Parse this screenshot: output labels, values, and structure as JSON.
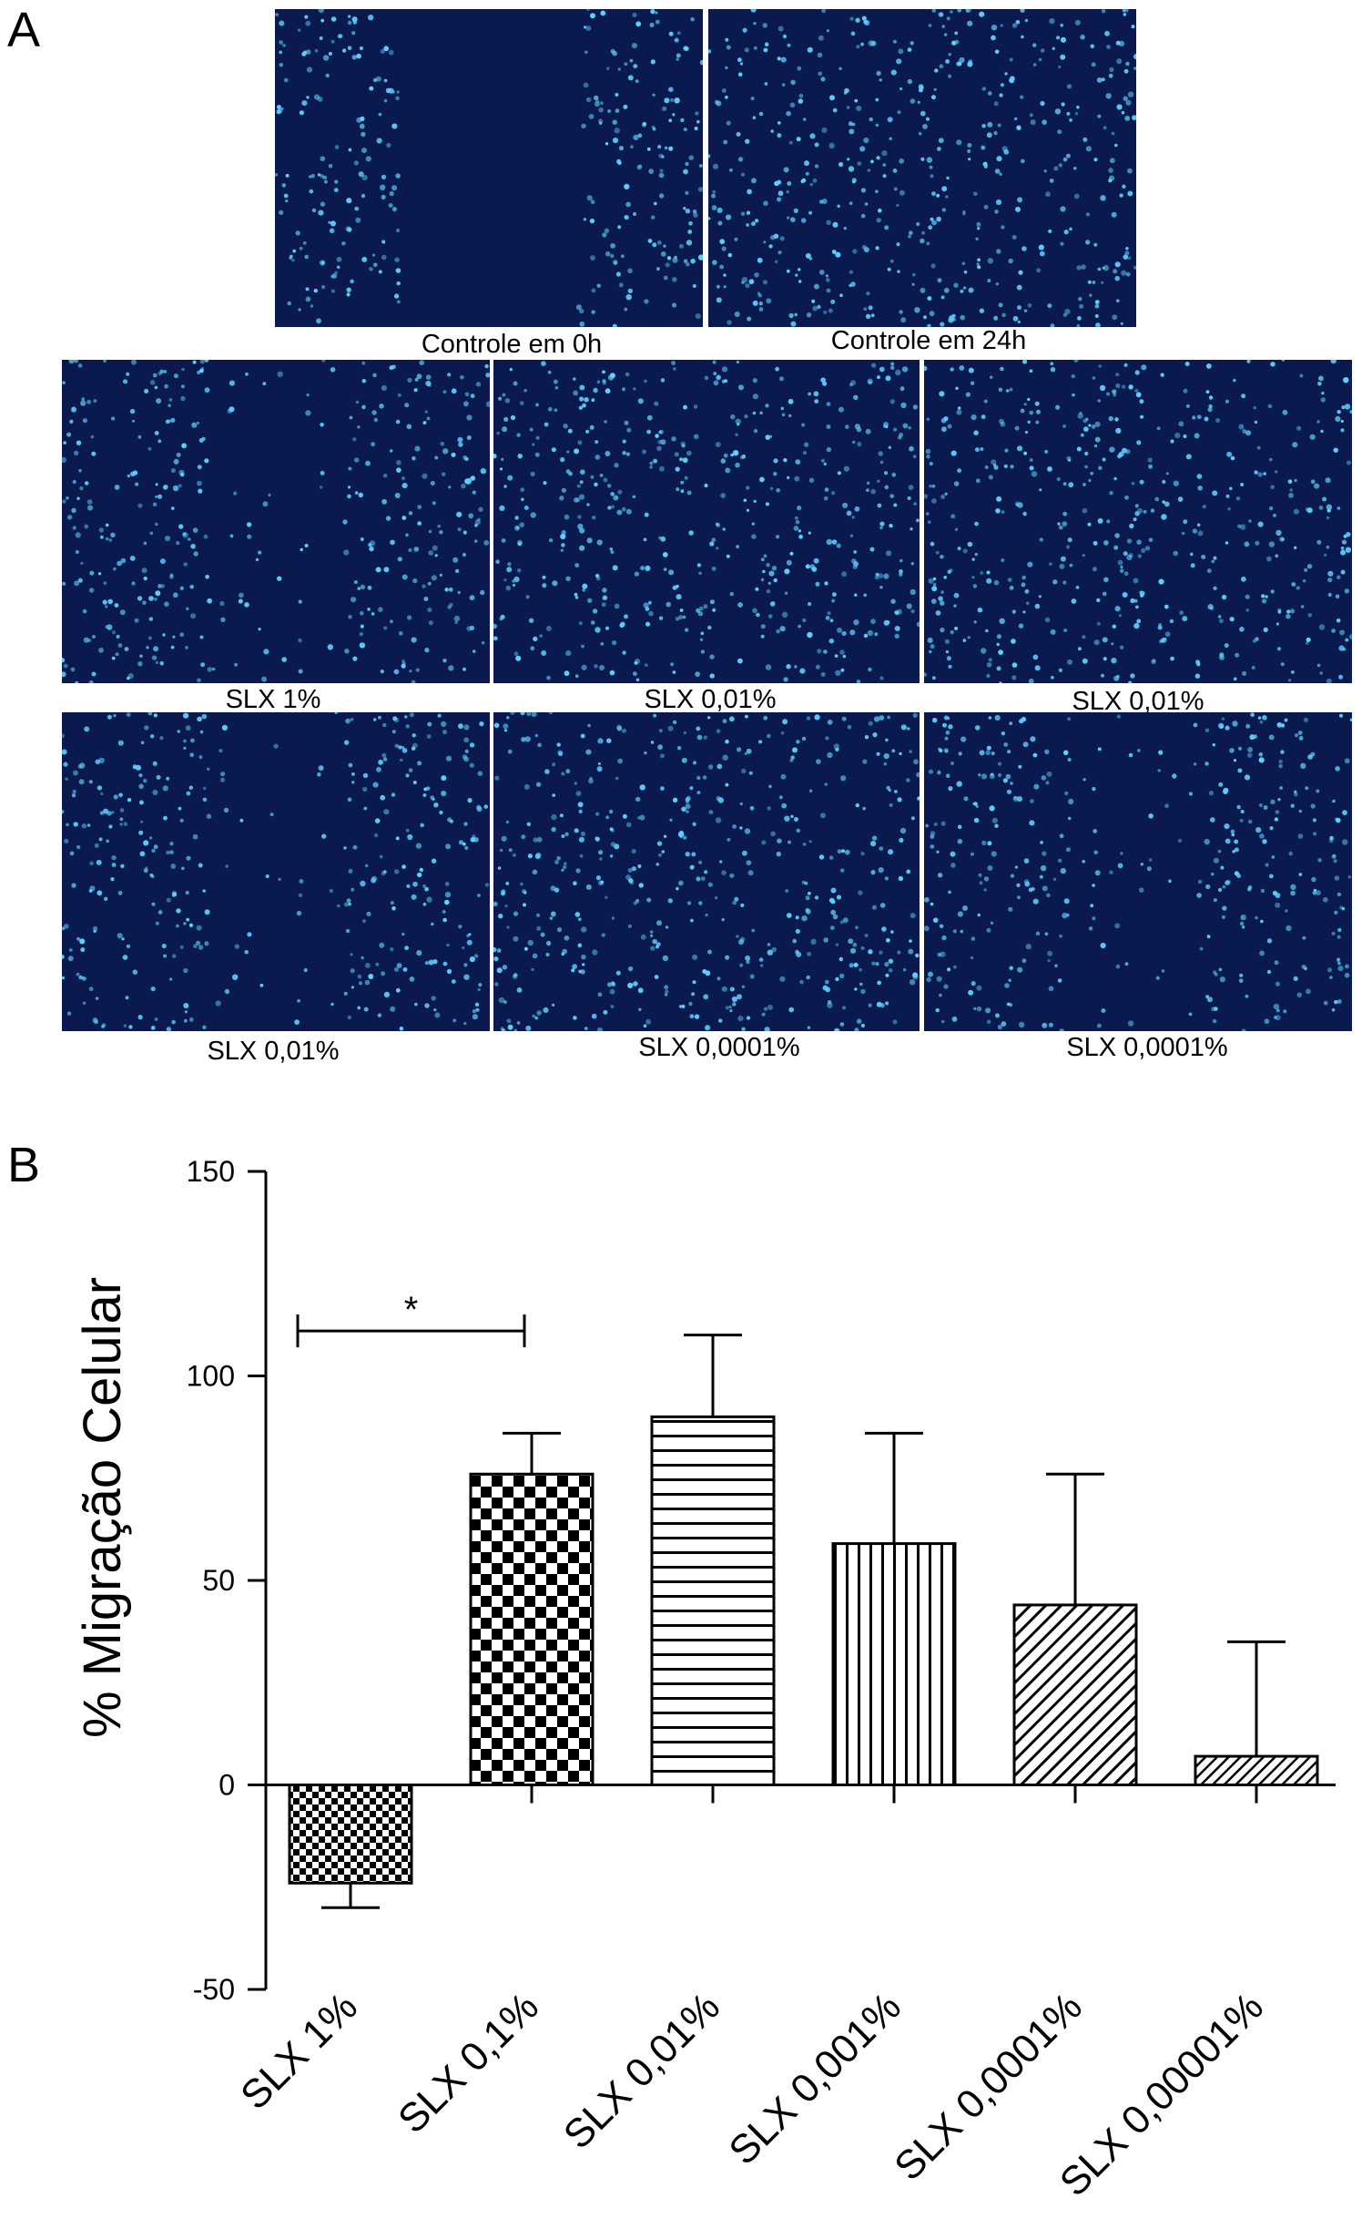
{
  "panel_a": {
    "letter": "A",
    "images": [
      {
        "caption": "Controle em 0h",
        "scratch": "open"
      },
      {
        "caption": "Controle em 24h",
        "scratch": "closed"
      },
      {
        "caption": "SLX 1%",
        "scratch": "partial"
      },
      {
        "caption": "SLX 0,01%",
        "scratch": "closed"
      },
      {
        "caption": "SLX 0,01%",
        "scratch": "closed"
      },
      {
        "caption": "SLX 0,01%",
        "scratch": "partial"
      },
      {
        "caption": "SLX 0,0001%",
        "scratch": "closed"
      },
      {
        "caption": "SLX 0,0001%",
        "scratch": "partial"
      }
    ],
    "colors": {
      "background": "#0a1a4e",
      "nuclei": "#5fd0ff"
    }
  },
  "panel_b": {
    "letter": "B"
  },
  "chart_data": {
    "type": "bar",
    "categories": [
      "SLX 1%",
      "SLX 0,1%",
      "SLX 0,01%",
      "SLX 0,001%",
      "SLX 0,0001%",
      "SLX 0,00001%"
    ],
    "values": [
      -24,
      76,
      90,
      59,
      44,
      7
    ],
    "error_upper": [
      -30,
      86,
      110,
      86,
      76,
      35
    ],
    "patterns": [
      "checker-small",
      "checker-large",
      "horizontal-lines",
      "vertical-lines",
      "diagonal-lines",
      "diagonal-lines-dense"
    ],
    "ylabel": "% Migração Celular",
    "xlabel": "",
    "ylim": [
      -50,
      150
    ],
    "yticks": [
      -50,
      0,
      50,
      100,
      150
    ],
    "significance": {
      "from": 0,
      "to": 1,
      "label": "*",
      "y": 111
    },
    "colors": {
      "bar_stroke": "#000000",
      "bar_fill": "#ffffff"
    }
  }
}
